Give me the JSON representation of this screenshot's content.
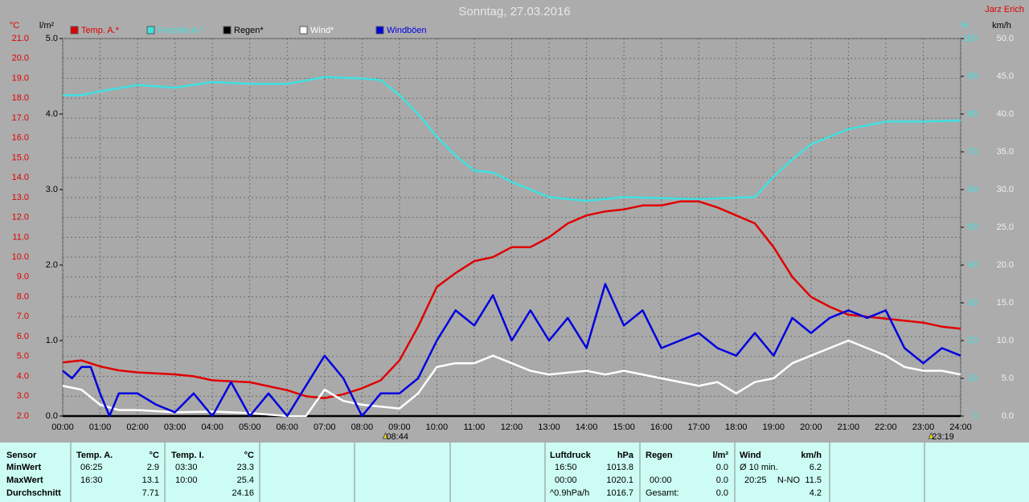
{
  "chart_data": {
    "type": "line",
    "title": "Sonntag, 27.03.2016",
    "author": "Jarz Erich",
    "ylabel": "°C",
    "y2label": "%",
    "y3label": "l/m²",
    "y4label": "km/h",
    "xlim": [
      0,
      24
    ],
    "xticks": [
      {
        "value": 0,
        "label": "00:00"
      },
      {
        "value": 1,
        "label": "01:00"
      },
      {
        "value": 2,
        "label": "02:00"
      },
      {
        "value": 3,
        "label": "03:00"
      },
      {
        "value": 4,
        "label": "04:00"
      },
      {
        "value": 5,
        "label": "05:00"
      },
      {
        "value": 6,
        "label": "06:00"
      },
      {
        "value": 7,
        "label": "07:00"
      },
      {
        "value": 8,
        "label": "08:00"
      },
      {
        "value": 9,
        "label": "09:00"
      },
      {
        "value": 10,
        "label": "10:00"
      },
      {
        "value": 11,
        "label": "11:00"
      },
      {
        "value": 12,
        "label": "12:00"
      },
      {
        "value": 13,
        "label": "13:00"
      },
      {
        "value": 14,
        "label": "14:00"
      },
      {
        "value": 15,
        "label": "15:00"
      },
      {
        "value": 16,
        "label": "16:00"
      },
      {
        "value": 17,
        "label": "17:00"
      },
      {
        "value": 18,
        "label": "18:00"
      },
      {
        "value": 19,
        "label": "19:00"
      },
      {
        "value": 20,
        "label": "20:00"
      },
      {
        "value": 21,
        "label": "21:00"
      },
      {
        "value": 22,
        "label": "22:00"
      },
      {
        "value": 23,
        "label": "23:00"
      },
      {
        "value": 24,
        "label": "24:00"
      }
    ],
    "ylim": [
      2,
      21
    ],
    "yticks": [
      {
        "value": 2,
        "label": "2.0"
      },
      {
        "value": 3,
        "label": "3.0"
      },
      {
        "value": 4,
        "label": "4.0"
      },
      {
        "value": 5,
        "label": "5.0"
      },
      {
        "value": 6,
        "label": "6.0"
      },
      {
        "value": 7,
        "label": "7.0"
      },
      {
        "value": 8,
        "label": "8.0"
      },
      {
        "value": 9,
        "label": "9.0"
      },
      {
        "value": 10,
        "label": "10.0"
      },
      {
        "value": 11,
        "label": "11.0"
      },
      {
        "value": 12,
        "label": "12.0"
      },
      {
        "value": 13,
        "label": "13.0"
      },
      {
        "value": 14,
        "label": "14.0"
      },
      {
        "value": 15,
        "label": "15.0"
      },
      {
        "value": 16,
        "label": "16.0"
      },
      {
        "value": 17,
        "label": "17.0"
      },
      {
        "value": 18,
        "label": "18.0"
      },
      {
        "value": 19,
        "label": "19.0"
      },
      {
        "value": 20,
        "label": "20.0"
      },
      {
        "value": 21,
        "label": "21.0"
      }
    ],
    "y2lim": [
      0,
      100
    ],
    "y2ticks": [
      0,
      10,
      20,
      30,
      40,
      50,
      60,
      70,
      80,
      90,
      100
    ],
    "y3lim": [
      0,
      5
    ],
    "y3ticks": [
      {
        "value": 0,
        "label": "0.0"
      },
      {
        "value": 1,
        "label": "1.0"
      },
      {
        "value": 2,
        "label": "2.0"
      },
      {
        "value": 3,
        "label": "3.0"
      },
      {
        "value": 4,
        "label": "4.0"
      },
      {
        "value": 5,
        "label": "5.0"
      }
    ],
    "y4lim": [
      0,
      50
    ],
    "y4ticks": [
      {
        "value": 0,
        "label": "0.0"
      },
      {
        "value": 5,
        "label": "5.0"
      },
      {
        "value": 10,
        "label": "10.0"
      },
      {
        "value": 15,
        "label": "15.0"
      },
      {
        "value": 20,
        "label": "20.0"
      },
      {
        "value": 25,
        "label": "25.0"
      },
      {
        "value": 30,
        "label": "30.0"
      },
      {
        "value": 35,
        "label": "35.0"
      },
      {
        "value": 40,
        "label": "40.0"
      },
      {
        "value": 45,
        "label": "45.0"
      },
      {
        "value": 50,
        "label": "50.0"
      }
    ],
    "grid": true,
    "series": [
      {
        "name": "Temp. A.*",
        "color": "#e00000",
        "axis": "y",
        "x": [
          0,
          0.5,
          1,
          1.5,
          2,
          3,
          3.5,
          4,
          5,
          6,
          6.5,
          7,
          7.5,
          8,
          8.5,
          9,
          9.5,
          10,
          10.5,
          11,
          11.5,
          12,
          12.5,
          13,
          13.5,
          14,
          14.5,
          15,
          15.5,
          16,
          16.5,
          17,
          17.5,
          18,
          18.5,
          19,
          19.5,
          20,
          20.5,
          21,
          21.5,
          22,
          22.5,
          23,
          23.5,
          24
        ],
        "values": [
          4.7,
          4.8,
          4.5,
          4.3,
          4.2,
          4.1,
          4.0,
          3.8,
          3.7,
          3.3,
          3.0,
          2.9,
          3.1,
          3.4,
          3.8,
          4.8,
          6.5,
          8.5,
          9.2,
          9.8,
          10.0,
          10.5,
          10.5,
          11.0,
          11.7,
          12.1,
          12.3,
          12.4,
          12.6,
          12.6,
          12.8,
          12.8,
          12.5,
          12.1,
          11.7,
          10.5,
          9.0,
          8.0,
          7.5,
          7.1,
          7.0,
          6.9,
          6.8,
          6.7,
          6.5,
          6.4
        ]
      },
      {
        "name": "Feuchte A.*",
        "color": "#40e0e0",
        "axis": "y2",
        "x": [
          0,
          0.5,
          1,
          2,
          3,
          4,
          5,
          6,
          7,
          8,
          8.5,
          9,
          9.5,
          10,
          10.5,
          11,
          11.5,
          12,
          12.5,
          13,
          14,
          15,
          16,
          17,
          18,
          18.5,
          19,
          19.5,
          20,
          21,
          22,
          23,
          24
        ],
        "values": [
          85,
          85,
          86,
          87.7,
          87,
          88.5,
          88,
          88,
          89.8,
          89.4,
          89,
          85,
          80,
          74,
          69,
          65,
          64.5,
          62,
          60,
          58,
          57,
          58,
          57.7,
          57.5,
          57.8,
          58,
          63.4,
          68,
          72,
          76,
          78,
          78,
          78.3
        ]
      },
      {
        "name": "Regen*",
        "color": "#000000",
        "axis": "y3",
        "x": [
          0,
          24
        ],
        "values": [
          0,
          0
        ]
      },
      {
        "name": "Wind*",
        "color": "#ffffff",
        "axis": "y4",
        "x": [
          0,
          0.5,
          1,
          1.5,
          2,
          3,
          4,
          5,
          6,
          6.5,
          7,
          7.5,
          8,
          9,
          9.5,
          10,
          10.5,
          11,
          11.5,
          12,
          12.5,
          13,
          14,
          14.5,
          15,
          16,
          17,
          17.5,
          18,
          18.5,
          19,
          19.5,
          20,
          20.5,
          21,
          21.5,
          22,
          22.5,
          23,
          23.5,
          24
        ],
        "values": [
          4,
          3.5,
          1.5,
          0.8,
          0.8,
          0.5,
          0.6,
          0.4,
          0,
          0,
          3.5,
          2,
          1.5,
          1,
          3,
          6.5,
          7,
          7,
          8,
          7,
          6,
          5.5,
          6,
          5.5,
          6,
          5,
          4,
          4.5,
          3,
          4.5,
          5,
          7,
          8,
          9,
          10,
          9,
          8,
          6.5,
          6,
          6,
          5.5
        ]
      },
      {
        "name": "Windböen",
        "color": "#0000e0",
        "axis": "y4",
        "x": [
          0,
          0.25,
          0.5,
          0.75,
          1,
          1.25,
          1.5,
          2,
          2.5,
          3,
          3.5,
          4,
          4.5,
          5,
          5.5,
          6,
          7,
          7.5,
          8,
          8.5,
          9,
          9.5,
          10,
          10.5,
          11,
          11.5,
          12,
          12.5,
          13,
          13.5,
          14,
          14.5,
          15,
          15.5,
          16,
          16.5,
          17,
          17.5,
          18,
          18.5,
          19,
          19.5,
          20,
          20.5,
          21,
          21.5,
          22,
          22.5,
          23,
          23.5,
          24
        ],
        "values": [
          6,
          5,
          6.5,
          6.5,
          3,
          0,
          3,
          3,
          1.5,
          0.5,
          3,
          0,
          4.5,
          0,
          3,
          0,
          8,
          5,
          0,
          3,
          3,
          5,
          10,
          14,
          12,
          16,
          10,
          14,
          10,
          13,
          9,
          17.5,
          12,
          14,
          9,
          10,
          11,
          9,
          8,
          11,
          8,
          13,
          11,
          13,
          14,
          13,
          14,
          9,
          7,
          9,
          8
        ]
      }
    ],
    "annotations": [
      {
        "text": "08:44",
        "x": 8.733
      },
      {
        "text": "23:19",
        "x": 23.317
      }
    ]
  },
  "table": {
    "sensor": {
      "header": "Sensor",
      "rows": [
        "MinWert",
        "MaxWert",
        "Durchschnitt"
      ]
    },
    "temp_a": {
      "header": "Temp. A.",
      "unit": "°C",
      "min": {
        "time": "06:25",
        "value": "2.9"
      },
      "max": {
        "time": "16:30",
        "value": "13.1"
      },
      "avg": "7.71"
    },
    "temp_i": {
      "header": "Temp. I.",
      "unit": "°C",
      "min": {
        "time": "03:30",
        "value": "23.3"
      },
      "max": {
        "time": "10:00",
        "value": "25.4"
      },
      "avg": "24.16"
    },
    "pressure": {
      "header": "Luftdruck",
      "unit": "hPa",
      "min": {
        "time": "16:50",
        "value": "1013.8"
      },
      "max": {
        "time": "00:00",
        "value": "1020.1"
      },
      "avg": {
        "label": "^0.9hPa/h",
        "value": "1016.7"
      }
    },
    "rain": {
      "header": "Regen",
      "unit": "l/m²",
      "rows": [
        {
          "value": "0.0"
        },
        {
          "time": "00:00",
          "value": "0.0"
        },
        {
          "label": "Gesamt:",
          "value": "0.0"
        }
      ]
    },
    "wind": {
      "header": "Wind",
      "unit": "km/h",
      "rows": [
        {
          "label": "Ø 10 min.",
          "value": "6.2"
        },
        {
          "time": "20:25",
          "dir": "N-NO",
          "value": "11.5"
        },
        {
          "value": "4.2"
        }
      ]
    }
  }
}
